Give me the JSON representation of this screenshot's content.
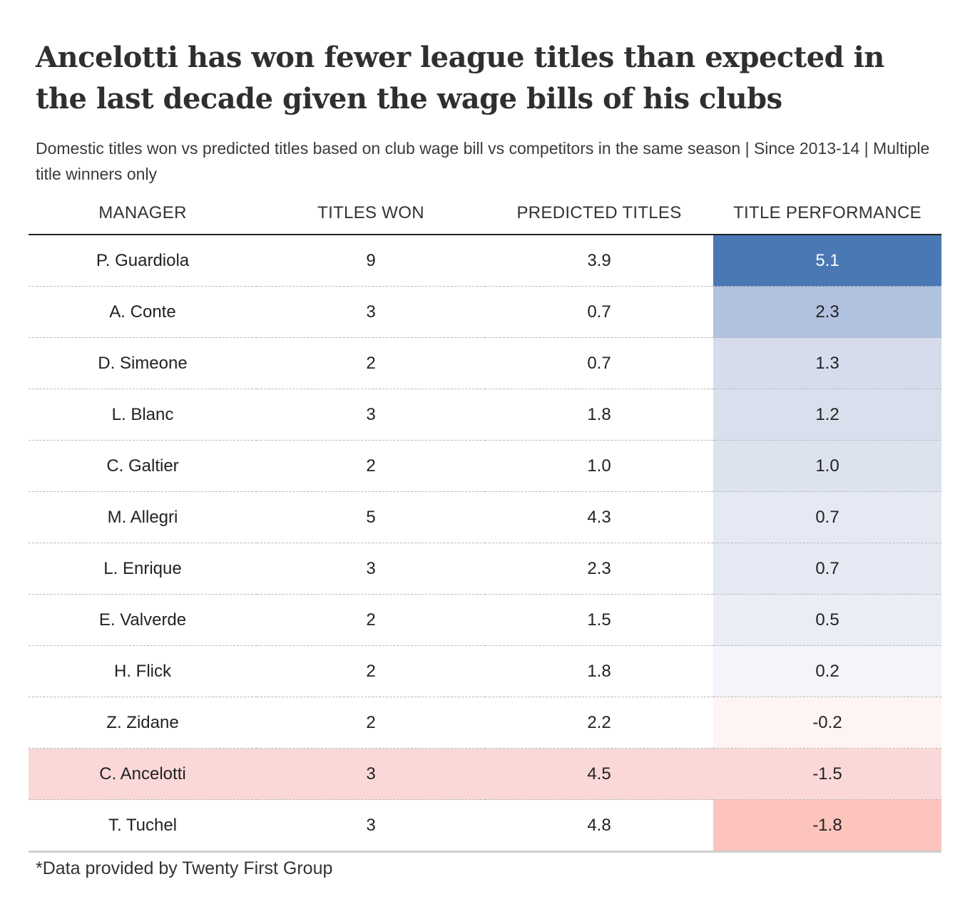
{
  "title": "Ancelotti has won fewer league titles than expected in the last decade given the wage bills of his clubs",
  "subtitle": "Domestic titles won vs predicted titles based on club wage bill vs competitors in the same season | Since 2013-14 | Multiple title winners only",
  "footer": "*Data provided by Twenty First Group",
  "highlight_color": "#fbd8d8",
  "chart_data": {
    "type": "table",
    "columns": [
      "MANAGER",
      "TITLES WON",
      "PREDICTED TITLES",
      "TITLE PERFORMANCE"
    ],
    "rows": [
      {
        "manager": "P. Guardiola",
        "titles_won": "9",
        "predicted": "3.9",
        "performance": "5.1",
        "cell_color": "#4a78b5",
        "text_color": "#ffffff"
      },
      {
        "manager": "A. Conte",
        "titles_won": "3",
        "predicted": "0.7",
        "performance": "2.3",
        "cell_color": "#b1c1e0",
        "text_color": "#222222"
      },
      {
        "manager": "D. Simeone",
        "titles_won": "2",
        "predicted": "0.7",
        "performance": "1.3",
        "cell_color": "#d6dcec",
        "text_color": "#222222"
      },
      {
        "manager": "L. Blanc",
        "titles_won": "3",
        "predicted": "1.8",
        "performance": "1.2",
        "cell_color": "#d9dfed",
        "text_color": "#222222"
      },
      {
        "manager": "C. Galtier",
        "titles_won": "2",
        "predicted": "1.0",
        "performance": "1.0",
        "cell_color": "#dde2ef",
        "text_color": "#222222"
      },
      {
        "manager": "M. Allegri",
        "titles_won": "5",
        "predicted": "4.3",
        "performance": "0.7",
        "cell_color": "#e5e9f3",
        "text_color": "#222222"
      },
      {
        "manager": "L. Enrique",
        "titles_won": "3",
        "predicted": "2.3",
        "performance": "0.7",
        "cell_color": "#e5e9f3",
        "text_color": "#222222"
      },
      {
        "manager": "E. Valverde",
        "titles_won": "2",
        "predicted": "1.5",
        "performance": "0.5",
        "cell_color": "#eaedf5",
        "text_color": "#222222"
      },
      {
        "manager": "H. Flick",
        "titles_won": "2",
        "predicted": "1.8",
        "performance": "0.2",
        "cell_color": "#f4f5fa",
        "text_color": "#222222"
      },
      {
        "manager": "Z. Zidane",
        "titles_won": "2",
        "predicted": "2.2",
        "performance": "-0.2",
        "cell_color": "#fef4f3",
        "text_color": "#222222"
      },
      {
        "manager": "C. Ancelotti",
        "titles_won": "3",
        "predicted": "4.5",
        "performance": "-1.5",
        "cell_color": "#fbd8d8",
        "text_color": "#222222",
        "highlight": true
      },
      {
        "manager": "T. Tuchel",
        "titles_won": "3",
        "predicted": "4.8",
        "performance": "-1.8",
        "cell_color": "#fdc3bd",
        "text_color": "#222222"
      }
    ]
  }
}
